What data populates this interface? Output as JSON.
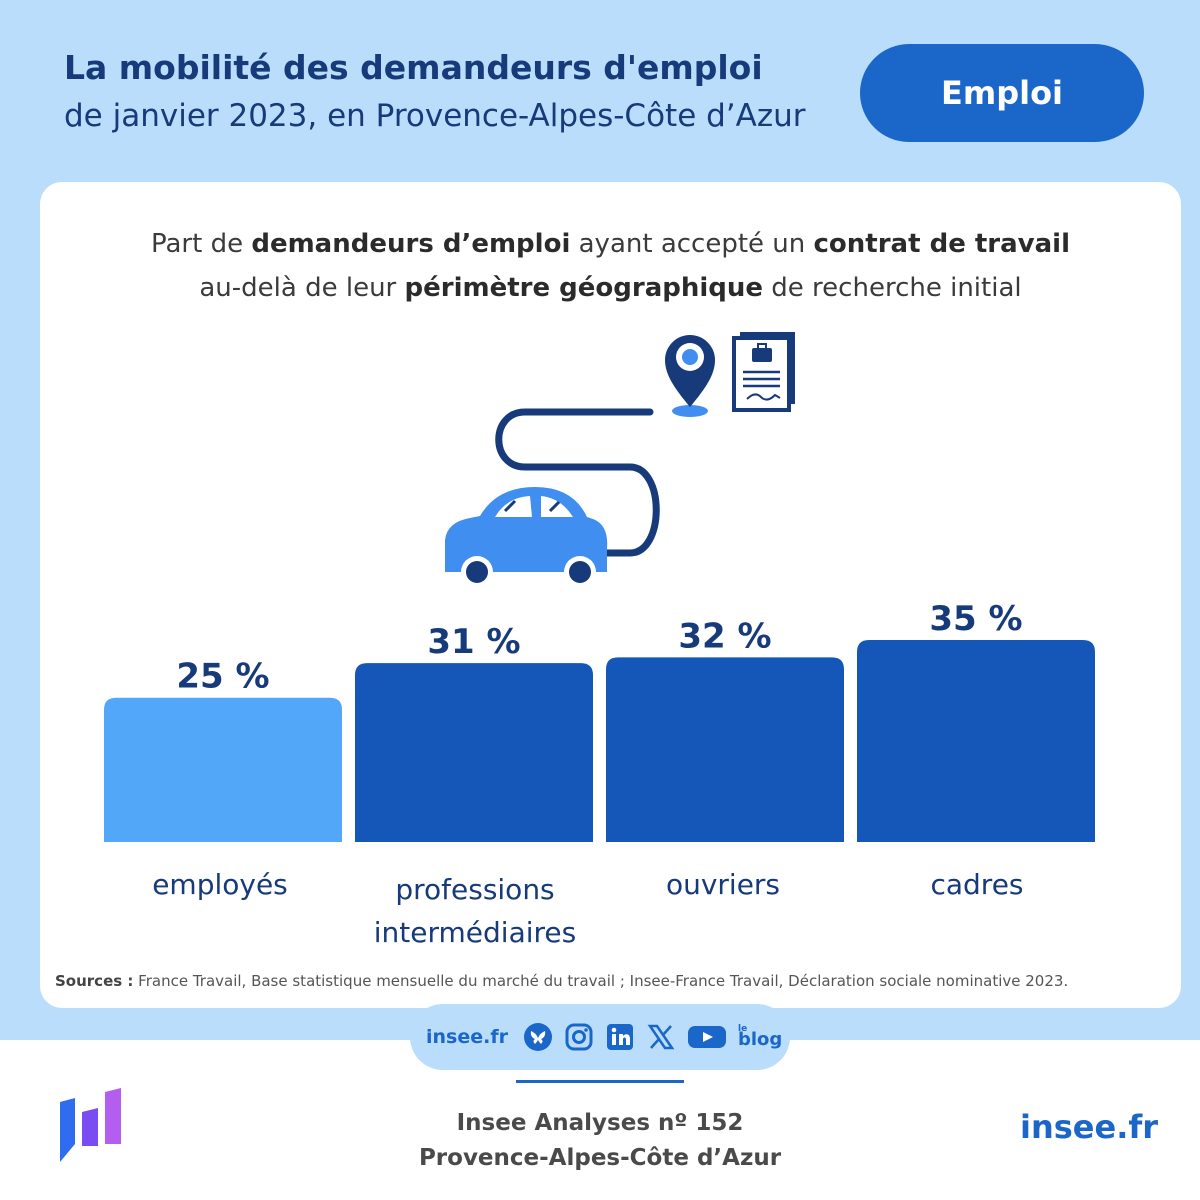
{
  "header": {
    "title": "La mobilité des demandeurs d'emploi",
    "subtitle": "de janvier 2023, en Provence-Alpes-Côte d’Azur",
    "tag": "Emploi"
  },
  "card": {
    "question_parts": {
      "p1": "Part de ",
      "b1": "demandeurs d’emploi",
      "p2": " ayant accepté un ",
      "b2": "contrat de travail",
      "p3": "au-delà de leur ",
      "b3": "périmètre géographique",
      "p4": " de recherche initial"
    },
    "sources_label": "Sources :",
    "sources_text": " France Travail, Base statistique mensuelle du marché du travail ; Insee-France Travail, Déclaration sociale nominative  2023."
  },
  "chart_data": {
    "type": "bar",
    "categories": [
      "employés",
      "professions intermédiaires",
      "ouvriers",
      "cadres"
    ],
    "category_lines": [
      [
        "employés"
      ],
      [
        "professions",
        "intermédiaires"
      ],
      [
        "ouvriers"
      ],
      [
        "cadres"
      ]
    ],
    "values": [
      25,
      31,
      32,
      35
    ],
    "value_labels": [
      "25 %",
      "31 %",
      "32 %",
      "35 %"
    ],
    "unit": "%",
    "ylim": [
      0,
      35
    ],
    "bar_colors": [
      "#52a7f9",
      "#1556b9",
      "#1556b9",
      "#1556b9"
    ],
    "label_color": "#163a7a",
    "grid": false,
    "legend": "none"
  },
  "social": {
    "site": "insee.fr",
    "icons": [
      "bluesky-icon",
      "instagram-icon",
      "linkedin-icon",
      "x-icon",
      "youtube-icon",
      "blog-icon"
    ],
    "blog_small": "le",
    "blog_big": "blog"
  },
  "footer": {
    "pub_line1": "Insee Analyses nº 152",
    "pub_line2": "Provence-Alpes-Côte d’Azur",
    "site": "insee.fr"
  },
  "colors": {
    "background": "#b9ddfb",
    "primary": "#1b66c9",
    "navy": "#163a7a",
    "bar_light": "#52a7f9",
    "bar_dark": "#1556b9"
  }
}
